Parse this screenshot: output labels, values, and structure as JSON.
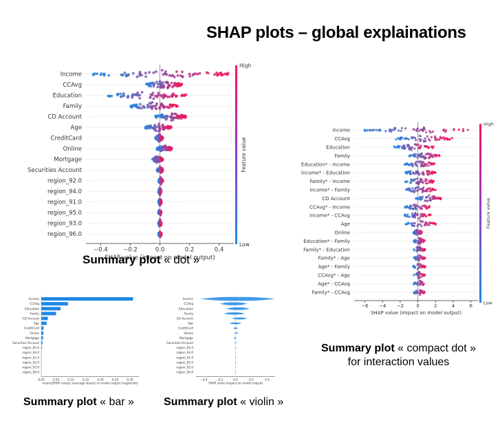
{
  "page_title": "SHAP plots – global explainations",
  "captions": {
    "dot": {
      "bold": "Summary plot",
      "rest": " « dot »"
    },
    "bar": {
      "bold": "Summary plot",
      "rest": " « bar »"
    },
    "violin": {
      "bold": "Summary plot",
      "rest": " « violin »"
    },
    "compact": {
      "bold": "Summary plot",
      "rest": " « compact dot »",
      "line2": "for interaction values"
    }
  },
  "colors": {
    "low": "#1e88e5",
    "high": "#ff0d57",
    "bar": "#1e88e5",
    "axis": "#999999"
  },
  "chart_data": [
    {
      "id": "dot",
      "type": "scatter",
      "features": [
        "Income",
        "CCAvg",
        "Education",
        "Family",
        "CD Account",
        "Age",
        "CreditCard",
        "Online",
        "Mortgage",
        "Securities Account",
        "region_92.0",
        "region_94.0",
        "region_91.0",
        "region_95.0",
        "region_93.0",
        "region_96.0"
      ],
      "spread": [
        [
          -0.45,
          0.5
        ],
        [
          -0.1,
          0.15
        ],
        [
          -0.35,
          0.18
        ],
        [
          -0.2,
          0.12
        ],
        [
          -0.03,
          0.18
        ],
        [
          -0.1,
          0.08
        ],
        [
          -0.03,
          0.02
        ],
        [
          -0.02,
          0.08
        ],
        [
          -0.05,
          0.02
        ],
        [
          -0.02,
          0.02
        ],
        [
          -0.01,
          0.02
        ],
        [
          -0.01,
          0.01
        ],
        [
          -0.01,
          0.01
        ],
        [
          -0.01,
          0.01
        ],
        [
          -0.01,
          0.01
        ],
        [
          -0.01,
          0.01
        ]
      ],
      "xticks": [
        "−0.4",
        "−0.2",
        "0.0",
        "0.2",
        "0.4"
      ],
      "xtick_values": [
        -0.4,
        -0.2,
        0.0,
        0.2,
        0.4
      ],
      "xlim": [
        -0.5,
        0.5
      ],
      "xlabel": "SHAP value (impact on model output)",
      "colorbar": {
        "label": "Feature value",
        "high": "High",
        "low": "Low"
      }
    },
    {
      "id": "bar",
      "type": "bar",
      "features": [
        "Income",
        "CCAvg",
        "Education",
        "Family",
        "CD Account",
        "Age",
        "CreditCard",
        "Online",
        "Mortgage",
        "Securities Account",
        "region_92.0",
        "region_94.0",
        "region_91.0",
        "region_95.0",
        "region_93.0",
        "region_96.0"
      ],
      "values": [
        0.31,
        0.09,
        0.065,
        0.05,
        0.022,
        0.018,
        0.008,
        0.007,
        0.006,
        0.004,
        0.002,
        0.001,
        0.001,
        0.001,
        0.001,
        0.001
      ],
      "xticks": [
        "0.00",
        "0.05",
        "0.10",
        "0.15",
        "0.20",
        "0.25",
        "0.30"
      ],
      "xtick_values": [
        0,
        0.05,
        0.1,
        0.15,
        0.2,
        0.25,
        0.3
      ],
      "xlim": [
        0,
        0.33
      ],
      "xlabel": "mean(|SHAP value|) (average impact on model output magnitude)"
    },
    {
      "id": "violin",
      "type": "area",
      "features": [
        "Income",
        "CCAvg",
        "Education",
        "Family",
        "CD Account",
        "Age",
        "CreditCard",
        "Online",
        "Mortgage",
        "Securities Account",
        "region_92.0",
        "region_94.0",
        "region_91.0",
        "region_95.0",
        "region_93.0",
        "region_96.0"
      ],
      "spread": [
        [
          -0.45,
          0.5
        ],
        [
          -0.2,
          0.15
        ],
        [
          -0.12,
          0.18
        ],
        [
          -0.15,
          0.12
        ],
        [
          -0.05,
          0.15
        ],
        [
          -0.08,
          0.08
        ],
        [
          -0.03,
          0.03
        ],
        [
          -0.02,
          0.04
        ],
        [
          -0.03,
          0.02
        ],
        [
          -0.02,
          0.02
        ],
        [
          -0.01,
          0.02
        ],
        [
          -0.01,
          0.01
        ],
        [
          -0.01,
          0.01
        ],
        [
          -0.01,
          0.01
        ],
        [
          -0.01,
          0.01
        ],
        [
          -0.01,
          0.01
        ]
      ],
      "xticks": [
        "−0.4",
        "−0.2",
        "0.0",
        "0.2",
        "0.4"
      ],
      "xtick_values": [
        -0.4,
        -0.2,
        0.0,
        0.2,
        0.4
      ],
      "xlim": [
        -0.5,
        0.5
      ],
      "xlabel": "SHAP value (impact on model output)"
    },
    {
      "id": "compact",
      "type": "scatter",
      "features": [
        "Income",
        "CCAvg",
        "Education",
        "Family",
        "Education* - Income",
        "Income* - Education",
        "Family* - Income",
        "Income* - Family",
        "CD Account",
        "CCAvg* - Income",
        "Income* - CCAvg",
        "Age",
        "Online",
        "Education* - Family",
        "Family* - Education",
        "Family* - Age",
        "Age* - Family",
        "CCAvg* - Age",
        "Age* - CCAvg",
        "Family* - CCAvg"
      ],
      "spread": [
        [
          -6.5,
          6
        ],
        [
          -2.5,
          4
        ],
        [
          -2.8,
          1.8
        ],
        [
          -1,
          2.5
        ],
        [
          -1.5,
          2
        ],
        [
          -1.5,
          2
        ],
        [
          -1.5,
          2
        ],
        [
          -1.5,
          2
        ],
        [
          -0.3,
          2.8
        ],
        [
          -1.5,
          1.5
        ],
        [
          -1.5,
          1.5
        ],
        [
          -1.5,
          2
        ],
        [
          -0.5,
          0.5
        ],
        [
          -0.5,
          0.8
        ],
        [
          -0.5,
          0.8
        ],
        [
          -0.5,
          0.8
        ],
        [
          -0.5,
          0.8
        ],
        [
          -0.5,
          0.8
        ],
        [
          -0.5,
          0.8
        ],
        [
          -0.5,
          0.8
        ]
      ],
      "xticks": [
        "−6",
        "−4",
        "−2",
        "0",
        "2",
        "4",
        "6"
      ],
      "xtick_values": [
        -6,
        -4,
        -2,
        0,
        2,
        4,
        6
      ],
      "xlim": [
        -7.2,
        6.8
      ],
      "xlabel": "SHAP value (impact on model output)",
      "colorbar": {
        "label": "Feature value",
        "high": "High",
        "low": "Low"
      }
    }
  ]
}
